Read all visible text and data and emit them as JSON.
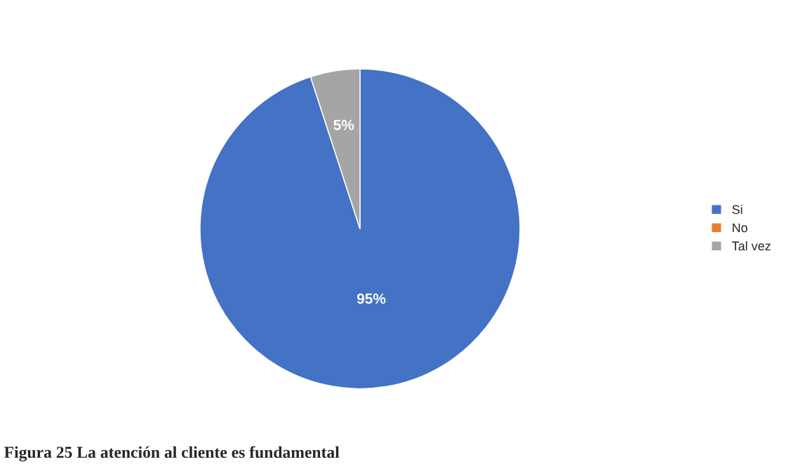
{
  "chart_data": {
    "type": "pie",
    "title": "Figura 25 La atención al cliente es fundamental",
    "categories": [
      "Si",
      "No",
      "Tal vez"
    ],
    "values": [
      95,
      0,
      5
    ],
    "colors": [
      "#4472c4",
      "#ed7d31",
      "#a5a5a5"
    ],
    "value_labels": [
      "95%",
      null,
      "5%"
    ],
    "legend": "right"
  }
}
